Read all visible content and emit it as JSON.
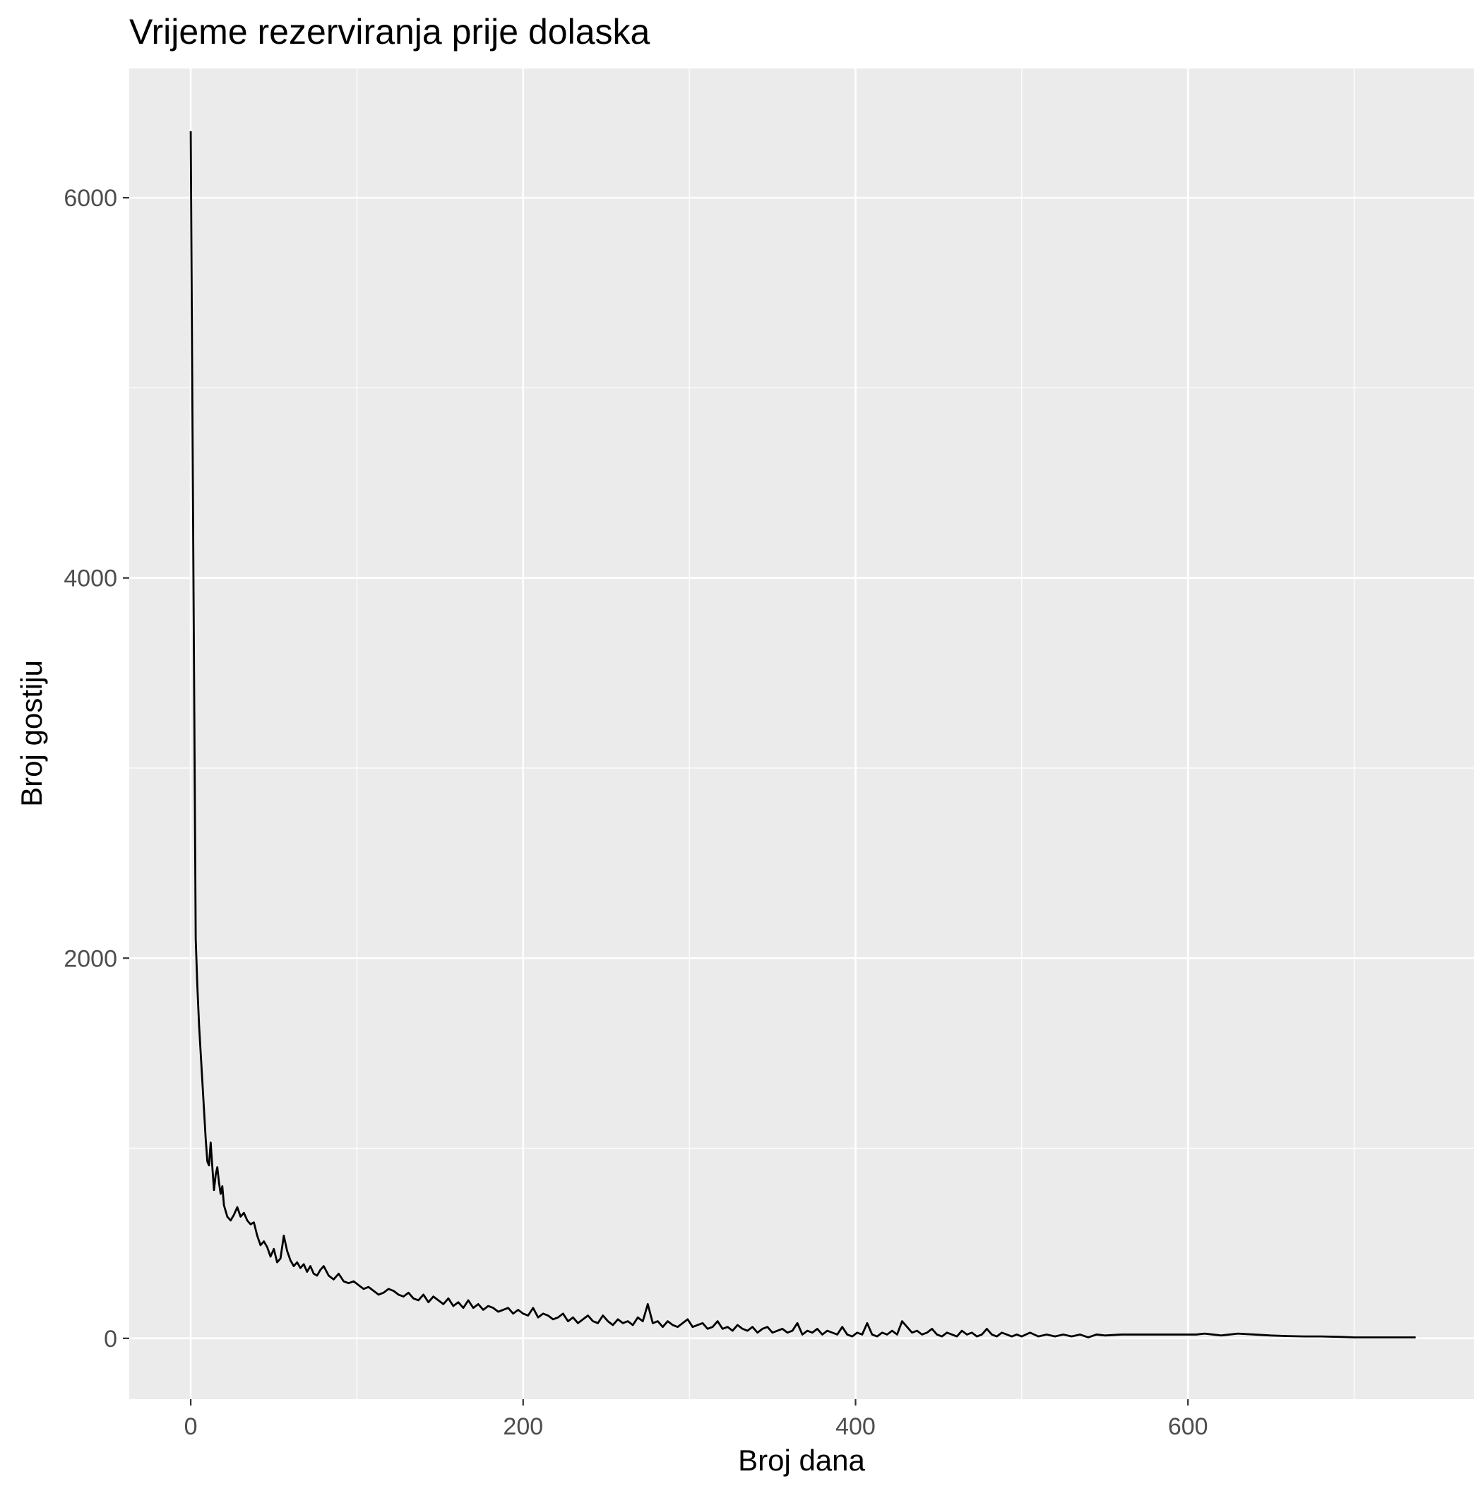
{
  "chart_data": {
    "type": "line",
    "title": "Vrijeme rezerviranja prije dolaska",
    "xlabel": "Broj dana",
    "ylabel": "Broj gostiju",
    "xlim": [
      -37,
      772
    ],
    "ylim": [
      -320,
      6680
    ],
    "x_ticks": [
      0,
      200,
      400,
      600
    ],
    "x_tick_labels": [
      "0",
      "200",
      "400",
      "600"
    ],
    "x_minor_ticks": [
      100,
      300,
      500,
      700
    ],
    "y_ticks": [
      0,
      2000,
      4000,
      6000
    ],
    "y_tick_labels": [
      "0",
      "2000",
      "4000",
      "6000"
    ],
    "y_minor_ticks": [
      1000,
      3000,
      5000
    ],
    "grid": true,
    "legend": "none",
    "colors": {
      "panel_background": "#ebebeb",
      "grid": "#ffffff",
      "line": "#000000",
      "tick_text": "#4d4d4d"
    },
    "series": [
      {
        "x": [
          0,
          1,
          2,
          3,
          4,
          5,
          6,
          7,
          8,
          9,
          10,
          11,
          12,
          13,
          14,
          15,
          16,
          17,
          18,
          19,
          20,
          22,
          24,
          26,
          28,
          30,
          32,
          34,
          36,
          38,
          40,
          42,
          44,
          46,
          48,
          50,
          52,
          54,
          56,
          58,
          60,
          62,
          64,
          66,
          68,
          70,
          72,
          74,
          76,
          78,
          80,
          83,
          86,
          89,
          92,
          95,
          98,
          101,
          104,
          107,
          110,
          113,
          116,
          119,
          122,
          125,
          128,
          131,
          134,
          137,
          140,
          143,
          146,
          149,
          152,
          155,
          158,
          161,
          164,
          167,
          170,
          173,
          176,
          179,
          182,
          185,
          188,
          191,
          194,
          197,
          200,
          203,
          206,
          209,
          212,
          215,
          218,
          221,
          224,
          227,
          230,
          233,
          236,
          239,
          242,
          245,
          248,
          251,
          254,
          257,
          260,
          263,
          266,
          269,
          272,
          275,
          278,
          281,
          284,
          287,
          290,
          293,
          296,
          299,
          302,
          305,
          308,
          311,
          314,
          317,
          320,
          323,
          326,
          329,
          332,
          335,
          338,
          341,
          344,
          347,
          350,
          353,
          356,
          359,
          362,
          365,
          368,
          371,
          374,
          377,
          380,
          383,
          386,
          389,
          392,
          395,
          398,
          401,
          404,
          407,
          410,
          413,
          416,
          419,
          422,
          425,
          428,
          431,
          434,
          437,
          440,
          443,
          446,
          449,
          452,
          455,
          458,
          461,
          464,
          467,
          470,
          473,
          476,
          479,
          482,
          485,
          488,
          491,
          494,
          497,
          500,
          505,
          510,
          515,
          520,
          525,
          530,
          535,
          540,
          545,
          550,
          560,
          570,
          580,
          590,
          600,
          605,
          610,
          615,
          620,
          625,
          630,
          640,
          650,
          660,
          670,
          680,
          690,
          700,
          710,
          720,
          730,
          737
        ],
        "y": [
          6350,
          4900,
          3500,
          2100,
          1850,
          1650,
          1500,
          1350,
          1200,
          1050,
          930,
          910,
          1030,
          900,
          780,
          860,
          900,
          820,
          760,
          800,
          700,
          640,
          620,
          650,
          690,
          640,
          660,
          620,
          600,
          610,
          540,
          490,
          510,
          480,
          430,
          470,
          400,
          420,
          540,
          460,
          410,
          380,
          400,
          370,
          390,
          350,
          380,
          340,
          330,
          360,
          380,
          330,
          310,
          340,
          300,
          290,
          300,
          280,
          260,
          270,
          250,
          230,
          240,
          260,
          250,
          230,
          220,
          240,
          210,
          200,
          230,
          190,
          220,
          200,
          180,
          210,
          170,
          190,
          160,
          200,
          160,
          180,
          150,
          170,
          160,
          140,
          150,
          160,
          130,
          150,
          130,
          120,
          160,
          110,
          130,
          120,
          100,
          110,
          130,
          90,
          110,
          80,
          100,
          120,
          90,
          80,
          120,
          90,
          70,
          100,
          80,
          90,
          70,
          110,
          90,
          180,
          80,
          90,
          60,
          90,
          70,
          60,
          80,
          100,
          60,
          70,
          80,
          50,
          60,
          90,
          50,
          60,
          40,
          70,
          50,
          40,
          60,
          30,
          50,
          60,
          30,
          40,
          50,
          30,
          40,
          80,
          20,
          40,
          30,
          50,
          20,
          40,
          30,
          20,
          60,
          20,
          10,
          30,
          20,
          80,
          20,
          10,
          30,
          20,
          40,
          20,
          90,
          60,
          30,
          40,
          20,
          30,
          50,
          20,
          10,
          30,
          20,
          10,
          40,
          20,
          30,
          10,
          20,
          50,
          20,
          10,
          30,
          20,
          10,
          20,
          10,
          30,
          10,
          20,
          10,
          20,
          10,
          20,
          5,
          20,
          15,
          20,
          20,
          20,
          20,
          20,
          20,
          25,
          20,
          15,
          20,
          25,
          20,
          15,
          12,
          10,
          10,
          8,
          5,
          5,
          5,
          5,
          5
        ]
      }
    ]
  }
}
